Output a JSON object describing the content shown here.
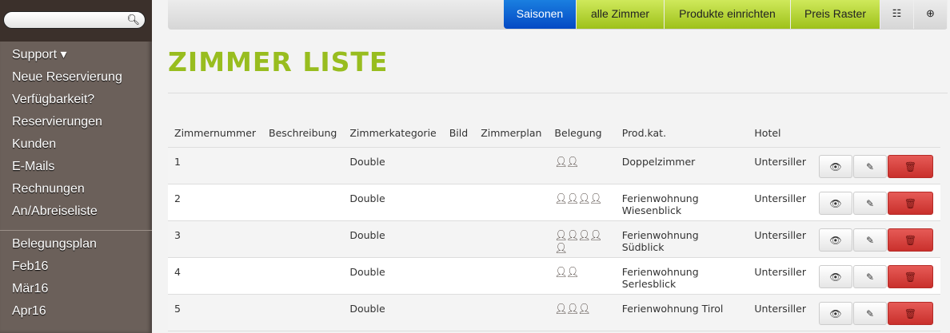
{
  "sidebar": {
    "search_placeholder": "",
    "nav1": [
      "Support ▾",
      "Neue Reservierung",
      "Verfügbarkeit?",
      "Reservierungen",
      "Kunden",
      "E-Mails",
      "Rechnungen",
      "An/Abreiseliste"
    ],
    "nav2": [
      "Belegungsplan",
      "Feb16",
      "Mär16",
      "Apr16"
    ]
  },
  "toolbar": {
    "saisonen": "Saisonen",
    "alle_zimmer": "alle Zimmer",
    "produkte": "Produkte einrichten",
    "preis": "Preis Raster",
    "list_icon": "☷",
    "plus_icon": "⊕"
  },
  "title": "ZIMMER LISTE",
  "colors": {
    "accent": "#98bd1f",
    "primary": "#0a5fd6",
    "danger": "#d9534f"
  },
  "table": {
    "headers": [
      "Zimmernummer",
      "Beschreibung",
      "Zimmerkategorie",
      "Bild",
      "Zimmerplan",
      "Belegung",
      "Prod.kat.",
      "Hotel",
      ""
    ],
    "rows": [
      {
        "nr": "1",
        "desc": "",
        "kat": "Double",
        "bild": "",
        "plan": "",
        "beleg": 2,
        "prod": "Doppelzimmer",
        "hotel": "Untersiller"
      },
      {
        "nr": "2",
        "desc": "",
        "kat": "Double",
        "bild": "",
        "plan": "",
        "beleg": 4,
        "prod": "Ferienwohnung Wiesenblick",
        "hotel": "Untersiller"
      },
      {
        "nr": "3",
        "desc": "",
        "kat": "Double",
        "bild": "",
        "plan": "",
        "beleg": 5,
        "prod": "Ferienwohnung Südblick",
        "hotel": "Untersiller"
      },
      {
        "nr": "4",
        "desc": "",
        "kat": "Double",
        "bild": "",
        "plan": "",
        "beleg": 2,
        "prod": "Ferienwohnung Serlesblick",
        "hotel": "Untersiller"
      },
      {
        "nr": "5",
        "desc": "",
        "kat": "Double",
        "bild": "",
        "plan": "",
        "beleg": 3,
        "prod": "Ferienwohnung Tirol",
        "hotel": "Untersiller"
      }
    ]
  }
}
